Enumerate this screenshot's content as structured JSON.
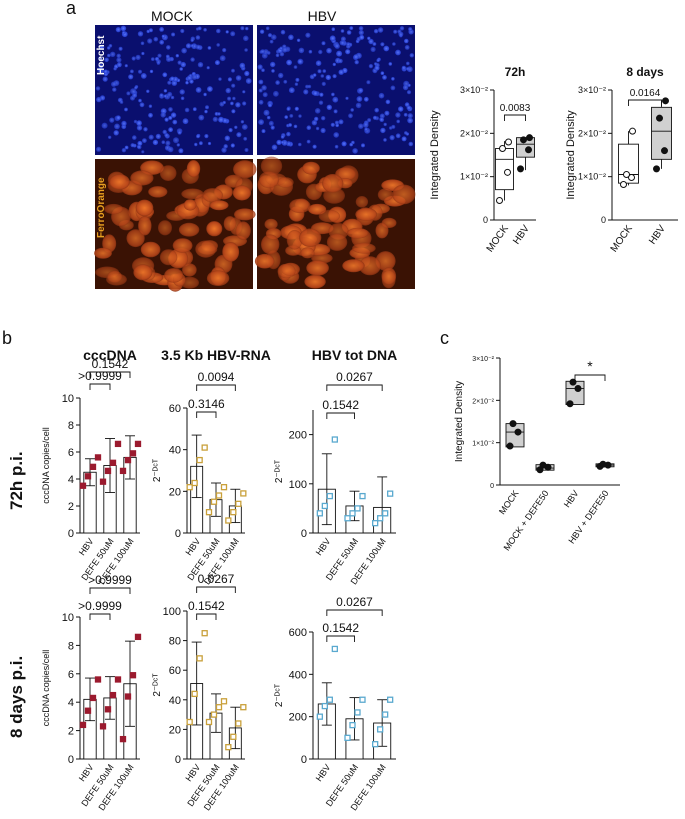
{
  "panels": {
    "a": "a",
    "b": "b",
    "c": "c"
  },
  "micrographs": {
    "col_labels": [
      "MOCK",
      "HBV"
    ],
    "row_labels": [
      "Hoechst",
      "FerroOrange"
    ],
    "colors": {
      "hoechst_bg": "#0a0f6e",
      "hoechst_dot": "#2f52ff",
      "ferro_bg": "#3a1204",
      "ferro_cell": "#c4501a"
    }
  },
  "row_labels_b": [
    "72h p.i.",
    "8 days p.i."
  ],
  "chart_data": [
    {
      "id": "a_72h",
      "type": "box",
      "title": "72h",
      "ylabel": "Integrated Density",
      "categories": [
        "MOCK",
        "HBV"
      ],
      "yticks": [
        "0",
        "1×10⁻²",
        "2×10⁻²",
        "3×10⁻²"
      ],
      "ylim": [
        0,
        0.03
      ],
      "boxes": [
        {
          "name": "MOCK",
          "min": 0.0045,
          "q1": 0.007,
          "median": 0.014,
          "q3": 0.0165,
          "max": 0.0182,
          "points": [
            0.0045,
            0.011,
            0.0165,
            0.018
          ],
          "fill": "#ffffff",
          "marker": "open"
        },
        {
          "name": "HBV",
          "min": 0.0115,
          "q1": 0.0145,
          "median": 0.0175,
          "q3": 0.019,
          "max": 0.019,
          "points": [
            0.0118,
            0.0162,
            0.0185,
            0.019
          ],
          "fill": "#d0d0d0",
          "marker": "filled"
        }
      ],
      "annotations": [
        {
          "from": 0,
          "to": 1,
          "text": "0.0083"
        }
      ]
    },
    {
      "id": "a_8d",
      "type": "box",
      "title": "8 days",
      "ylabel": "Integrated Density",
      "categories": [
        "MOCK",
        "HBV"
      ],
      "yticks": [
        "0",
        "1×10⁻²",
        "2×10⁻²",
        "3×10⁻²"
      ],
      "ylim": [
        0,
        0.03
      ],
      "boxes": [
        {
          "name": "MOCK",
          "min": 0.008,
          "q1": 0.0085,
          "median": 0.0105,
          "q3": 0.0175,
          "max": 0.0205,
          "points": [
            0.0082,
            0.0098,
            0.0105,
            0.0205
          ],
          "fill": "#ffffff",
          "marker": "open"
        },
        {
          "name": "HBV",
          "min": 0.0118,
          "q1": 0.014,
          "median": 0.0205,
          "q3": 0.026,
          "max": 0.0275,
          "points": [
            0.0118,
            0.016,
            0.0235,
            0.0275
          ],
          "fill": "#d0d0d0",
          "marker": "filled"
        }
      ],
      "annotations": [
        {
          "from": 0,
          "to": 1,
          "text": "0.0164"
        }
      ]
    },
    {
      "id": "b_ccc_72h",
      "type": "bar",
      "title": "cccDNA",
      "ylabel": "cccDNA copies/cell",
      "categories": [
        "HBV",
        "DEFE 50uM",
        "DEFE 100uM"
      ],
      "values": [
        4.5,
        5.0,
        5.6
      ],
      "errors": [
        1.0,
        2.0,
        1.6
      ],
      "points": [
        [
          3.5,
          4.2,
          4.9,
          5.6
        ],
        [
          3.8,
          4.6,
          5.2,
          6.6
        ],
        [
          4.6,
          5.4,
          5.9,
          6.6
        ]
      ],
      "ylim": [
        0,
        10
      ],
      "yticks": [
        0,
        2,
        4,
        6,
        8,
        10
      ],
      "marker_color": "#9b1a2e",
      "marker_shape": "square-filled",
      "annotations": [
        {
          "from": 0,
          "to": 1,
          "text": ">0.9999",
          "level": 1
        },
        {
          "from": 0,
          "to": 2,
          "text": "0.1542",
          "level": 2
        }
      ]
    },
    {
      "id": "b_rna_72h",
      "type": "bar",
      "title": "3.5 Kb HBV-RNA",
      "ylabel": "2⁻ᴰᶜᵀ",
      "categories": [
        "HBV",
        "DEFE 50uM",
        "DEFE 100uM"
      ],
      "values": [
        32,
        16,
        13
      ],
      "errors": [
        15,
        8,
        8
      ],
      "points": [
        [
          22,
          24,
          35,
          41
        ],
        [
          10,
          15,
          18,
          22
        ],
        [
          6,
          10,
          14,
          19
        ]
      ],
      "ylim": [
        0,
        60
      ],
      "yticks": [
        0,
        20,
        40,
        60
      ],
      "marker_color": "#c9a03a",
      "marker_shape": "square-open",
      "annotations": [
        {
          "from": 0,
          "to": 1,
          "text": "0.3146",
          "level": 1
        },
        {
          "from": 0,
          "to": 2,
          "text": "0.0094",
          "level": 2
        }
      ]
    },
    {
      "id": "b_tot_72h",
      "type": "bar",
      "title": "HBV tot DNA",
      "ylabel": "2⁻ᴰᶜᵀ",
      "categories": [
        "HBV",
        "DEFE 50uM",
        "DEFE 100uM"
      ],
      "values": [
        89,
        55,
        52
      ],
      "errors": [
        72,
        30,
        62
      ],
      "points": [
        [
          40,
          55,
          75,
          190
        ],
        [
          30,
          40,
          50,
          75
        ],
        [
          20,
          30,
          40,
          80
        ]
      ],
      "ylim": [
        0,
        250
      ],
      "yticks": [
        0,
        100,
        200
      ],
      "marker_color": "#5aa9cf",
      "marker_shape": "square-open",
      "annotations": [
        {
          "from": 0,
          "to": 1,
          "text": "0.1542",
          "level": 1
        },
        {
          "from": 0,
          "to": 2,
          "text": "0.0267",
          "level": 2
        }
      ]
    },
    {
      "id": "b_ccc_8d",
      "type": "bar",
      "title": "",
      "ylabel": "cccDNA copies/cell",
      "categories": [
        "HBV",
        "DEFE 50uM",
        "DEFE 100uM"
      ],
      "values": [
        4.2,
        4.3,
        5.3
      ],
      "errors": [
        1.5,
        1.5,
        3.0
      ],
      "points": [
        [
          2.4,
          3.4,
          4.3,
          5.6
        ],
        [
          2.3,
          3.5,
          4.5,
          5.6
        ],
        [
          1.4,
          4.4,
          5.9,
          8.6
        ]
      ],
      "ylim": [
        0,
        10
      ],
      "yticks": [
        0,
        2,
        4,
        6,
        8,
        10
      ],
      "marker_color": "#9b1a2e",
      "marker_shape": "square-filled",
      "annotations": [
        {
          "from": 0,
          "to": 1,
          "text": ">0.9999",
          "level": 1
        },
        {
          "from": 0,
          "to": 2,
          "text": ">0.9999",
          "level": 2
        }
      ]
    },
    {
      "id": "b_rna_8d",
      "type": "bar",
      "title": "",
      "ylabel": "2⁻ᴰᶜᵀ",
      "categories": [
        "HBV",
        "DEFE 50uM",
        "DEFE 100uM"
      ],
      "values": [
        51,
        31,
        21
      ],
      "errors": [
        28,
        13,
        14
      ],
      "points": [
        [
          25,
          44,
          68,
          85
        ],
        [
          25,
          30,
          35,
          39
        ],
        [
          8,
          15,
          24,
          35
        ]
      ],
      "ylim": [
        0,
        100
      ],
      "yticks": [
        0,
        20,
        40,
        60,
        80,
        100
      ],
      "marker_color": "#c9a03a",
      "marker_shape": "square-open",
      "annotations": [
        {
          "from": 0,
          "to": 1,
          "text": "0.1542",
          "level": 1
        },
        {
          "from": 0,
          "to": 2,
          "text": "0.0267",
          "level": 2
        }
      ]
    },
    {
      "id": "b_tot_8d",
      "type": "bar",
      "title": "",
      "ylabel": "2⁻ᴰᶜᵀ",
      "categories": [
        "HBV",
        "DEFE 50uM",
        "DEFE 100uM"
      ],
      "values": [
        260,
        190,
        170
      ],
      "errors": [
        100,
        100,
        110
      ],
      "points": [
        [
          200,
          250,
          280,
          520
        ],
        [
          100,
          160,
          220,
          280
        ],
        [
          70,
          140,
          210,
          280
        ]
      ],
      "ylim": [
        0,
        600
      ],
      "yticks": [
        0,
        200,
        400,
        600
      ],
      "marker_color": "#5aa9cf",
      "marker_shape": "square-open",
      "annotations": [
        {
          "from": 0,
          "to": 1,
          "text": "0.1542",
          "level": 1
        },
        {
          "from": 0,
          "to": 2,
          "text": "0.0267",
          "level": 2
        }
      ]
    },
    {
      "id": "c",
      "type": "box",
      "title": "",
      "ylabel": "Integrated Density",
      "categories": [
        "MOCK",
        "MOCK + DEFE50",
        "HBV",
        "HBV + DEFE50"
      ],
      "yticks": [
        "0",
        "1×10⁻²",
        "2×10⁻²",
        "3×10⁻²"
      ],
      "ylim": [
        0,
        0.03
      ],
      "boxes": [
        {
          "name": "MOCK",
          "min": 0.009,
          "q1": 0.009,
          "median": 0.0125,
          "q3": 0.0145,
          "max": 0.0145,
          "points": [
            0.0092,
            0.0125,
            0.0145
          ],
          "fill": "#d0d0d0",
          "marker": "filled"
        },
        {
          "name": "MOCK + DEFE50",
          "min": 0.0035,
          "q1": 0.0035,
          "median": 0.004,
          "q3": 0.0048,
          "max": 0.0048,
          "points": [
            0.0036,
            0.0042,
            0.0047
          ],
          "fill": "#d0d0d0",
          "marker": "filled"
        },
        {
          "name": "HBV",
          "min": 0.019,
          "q1": 0.019,
          "median": 0.0228,
          "q3": 0.0245,
          "max": 0.0245,
          "points": [
            0.0192,
            0.0228,
            0.0243
          ],
          "fill": "#d0d0d0",
          "marker": "filled"
        },
        {
          "name": "HBV + DEFE50",
          "min": 0.0043,
          "q1": 0.0043,
          "median": 0.0047,
          "q3": 0.005,
          "max": 0.005,
          "points": [
            0.0044,
            0.0047,
            0.0049
          ],
          "fill": "#d0d0d0",
          "marker": "filled"
        }
      ],
      "annotations": [
        {
          "from": 2,
          "to": 3,
          "text": "*"
        }
      ]
    }
  ]
}
